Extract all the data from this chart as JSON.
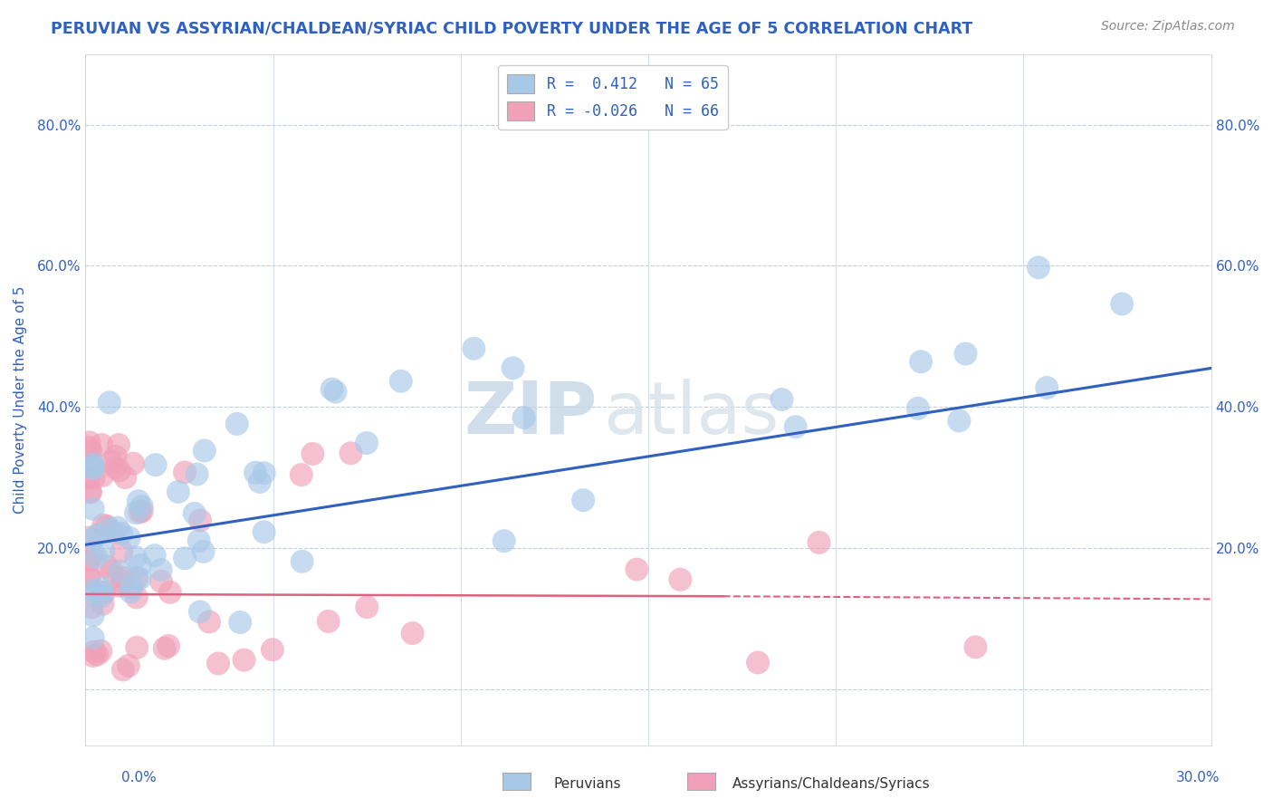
{
  "title": "PERUVIAN VS ASSYRIAN/CHALDEAN/SYRIAC CHILD POVERTY UNDER THE AGE OF 5 CORRELATION CHART",
  "source": "Source: ZipAtlas.com",
  "ylabel": "Child Poverty Under the Age of 5",
  "ytick_vals": [
    0.0,
    0.2,
    0.4,
    0.6,
    0.8
  ],
  "ytick_labels": [
    "",
    "20.0%",
    "40.0%",
    "60.0%",
    "80.0%"
  ],
  "xlim": [
    0.0,
    0.3
  ],
  "ylim": [
    -0.08,
    0.9
  ],
  "peruvian_color": "#a8c8e8",
  "peruvian_line_color": "#3060c0",
  "assyrian_color": "#f0a0b8",
  "assyrian_line_color": "#e06080",
  "watermark_zip": "ZIP",
  "watermark_atlas": "atlas",
  "background_color": "#ffffff",
  "grid_color": "#c0d0e0",
  "title_color": "#3060c0",
  "legend_text_color": "#3060c0",
  "legend1_label": "R =  0.412   N = 65",
  "legend2_label": "R = -0.026   N = 66",
  "per_line_y0": 0.205,
  "per_line_y1": 0.455,
  "ass_line_y0": 0.135,
  "ass_line_y1": 0.128
}
